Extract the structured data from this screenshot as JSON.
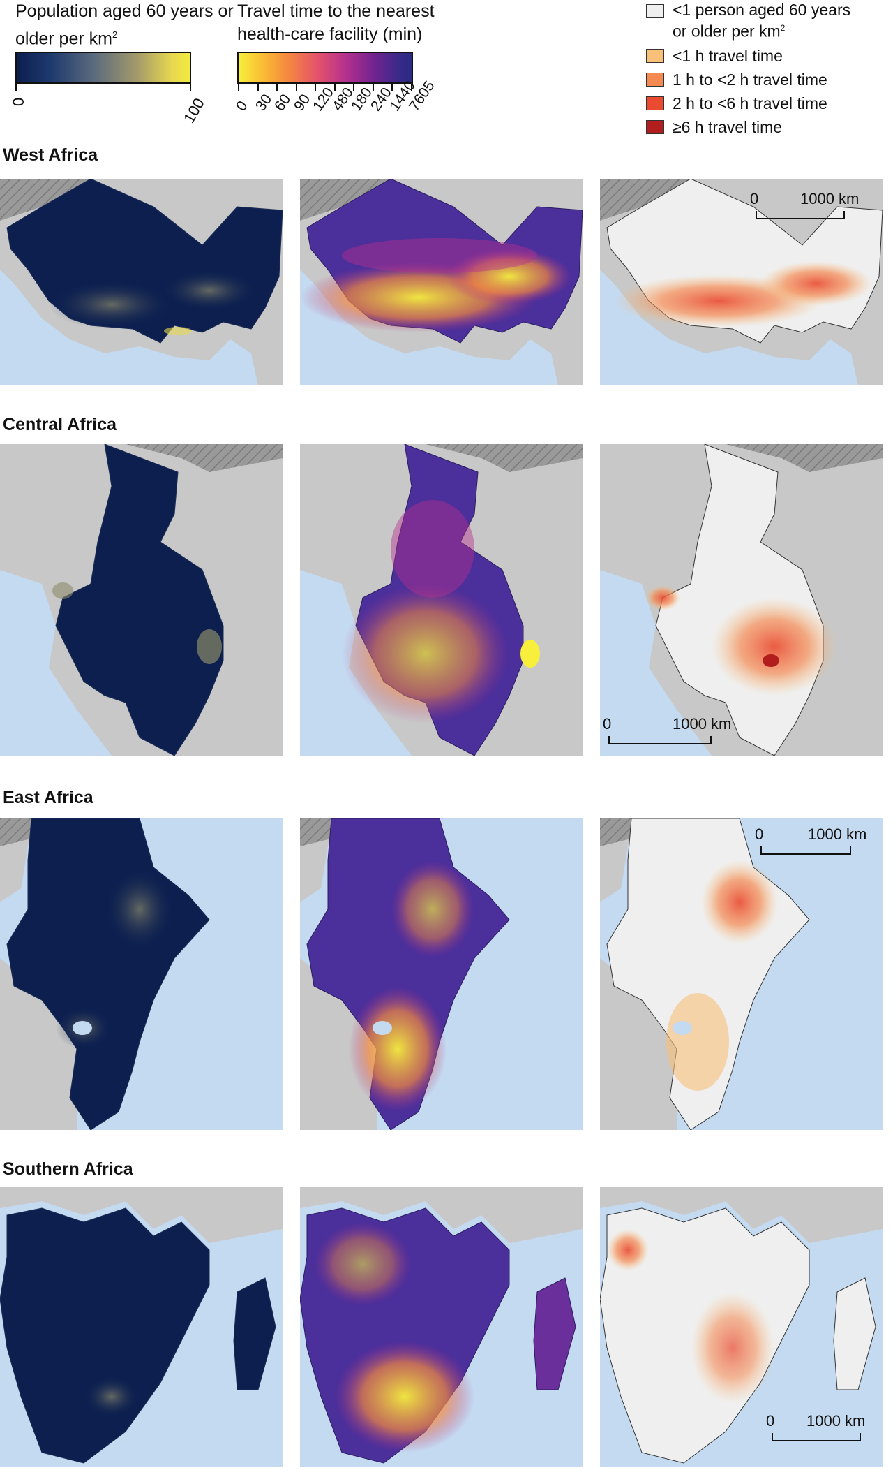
{
  "legend_population": {
    "title_line1": "Population aged 60 years or",
    "title_line2": "older per km",
    "title_sup": "2",
    "ticks": [
      "0",
      "100"
    ]
  },
  "legend_travel": {
    "title_line1": "Travel time to the nearest",
    "title_line2": "health-care facility (min)",
    "ticks": [
      "0",
      "30",
      "60",
      "90",
      "120",
      "480",
      "180",
      "240",
      "1440",
      "7605"
    ]
  },
  "legend_categories": [
    {
      "label": "<1 person aged 60 years",
      "label2": "or older per km",
      "sup": "2",
      "color": "#efefef"
    },
    {
      "label": "<1 h travel time",
      "color": "#f9c07a"
    },
    {
      "label": "1 h to <2 h travel time",
      "color": "#f48a52"
    },
    {
      "label": "2 h to <6 h travel time",
      "color": "#e94a30"
    },
    {
      "label": "≥6 h travel time",
      "color": "#b21d1d"
    }
  ],
  "regions": [
    {
      "name": "West Africa"
    },
    {
      "name": "Central Africa"
    },
    {
      "name": "East Africa"
    },
    {
      "name": "Southern Africa"
    }
  ],
  "scalebar": {
    "start": "0",
    "end": "1000 km"
  },
  "colors": {
    "ocean": "#c4daf0",
    "land_other": "#c8c8c8",
    "desert_hatch": "#8f8f8f",
    "pop_dark": "#0c1f4f",
    "pop_light": "#e8d84f",
    "tt_dark": "#3b2a8a",
    "tt_light": "#f7ef3c",
    "cat_bg": "#efefef"
  }
}
